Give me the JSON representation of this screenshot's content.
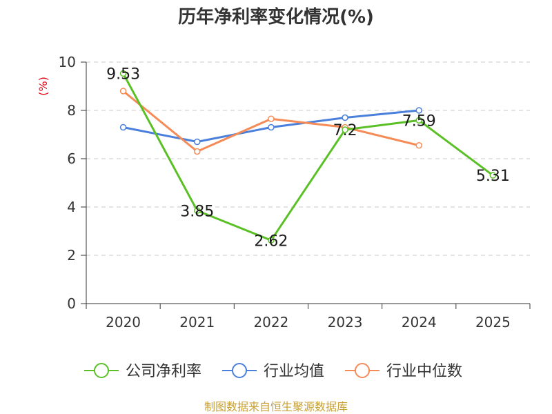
{
  "chart_data": {
    "type": "line",
    "title": "历年净利率变化情况(%)",
    "ylabel": "(%)",
    "x": [
      "2020",
      "2021",
      "2022",
      "2023",
      "2024",
      "2025"
    ],
    "ylim": [
      0,
      10
    ],
    "yticks": [
      0,
      2,
      4,
      6,
      8,
      10
    ],
    "grid": true,
    "legend_position": "bottom",
    "series": [
      {
        "name": "公司净利率",
        "color": "#5ac026",
        "values": [
          9.53,
          3.85,
          2.62,
          7.2,
          7.59,
          5.31
        ],
        "labels": [
          "9.53",
          "3.85",
          "2.62",
          "7.2",
          "7.59",
          "5.31"
        ]
      },
      {
        "name": "行业均值",
        "color": "#4a7fdb",
        "values": [
          7.3,
          6.7,
          7.3,
          7.7,
          8.0,
          null
        ]
      },
      {
        "name": "行业中位数",
        "color": "#f58b57",
        "values": [
          8.8,
          6.3,
          7.65,
          7.3,
          6.55,
          null
        ]
      }
    ]
  },
  "source": "制图数据来自恒生聚源数据库"
}
